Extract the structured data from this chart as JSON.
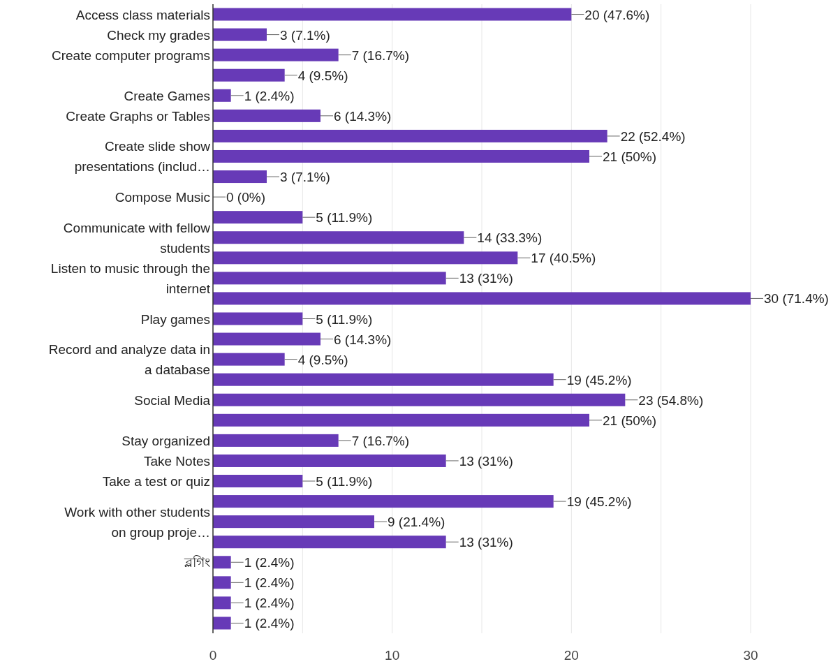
{
  "chart_data": {
    "type": "bar",
    "orientation": "horizontal",
    "categories": [
      "Access class materials",
      "Check my grades",
      "Create computer programs",
      null,
      "Create Games",
      "Create Graphs or Tables",
      null,
      "Create slide show\npresentations (includ…",
      null,
      "Compose Music",
      null,
      "Communicate with fellow\nstudents",
      null,
      "Listen to music through the\ninternet",
      null,
      "Play games",
      null,
      "Record and analyze data in\na database",
      null,
      "Social Media",
      null,
      "Stay organized",
      "Take Notes",
      "Take a test or quiz",
      null,
      "Work with other students\non group proje…",
      null,
      "ব্লগিং",
      null,
      null,
      null
    ],
    "series": [
      {
        "color": "#673ab7",
        "values": [
          20,
          3,
          7,
          4,
          1,
          6,
          22,
          21,
          3,
          0,
          5,
          14,
          17,
          13,
          30,
          5,
          6,
          4,
          19,
          23,
          21,
          7,
          13,
          5,
          19,
          9,
          13,
          1,
          1,
          1,
          1
        ],
        "value_labels": [
          "20 (47.6%)",
          "3 (7.1%)",
          "7 (16.7%)",
          "4 (9.5%)",
          "1 (2.4%)",
          "6 (14.3%)",
          "22 (52.4%)",
          "21 (50%)",
          "3 (7.1%)",
          "0 (0%)",
          "5 (11.9%)",
          "14 (33.3%)",
          "17 (40.5%)",
          "13 (31%)",
          "30 (71.4%)",
          "5 (11.9%)",
          "6 (14.3%)",
          "4 (9.5%)",
          "19 (45.2%)",
          "23 (54.8%)",
          "21 (50%)",
          "7 (16.7%)",
          "13 (31%)",
          "5 (11.9%)",
          "19 (45.2%)",
          "9 (21.4%)",
          "13 (31%)",
          "1 (2.4%)",
          "1 (2.4%)",
          "1 (2.4%)",
          "1 (2.4%)"
        ]
      }
    ],
    "xlim": [
      0,
      30
    ],
    "xticks": [
      0,
      {
        "value": 5,
        "label": null
      },
      10,
      {
        "value": 15,
        "label": null
      },
      20,
      {
        "value": 25,
        "label": null
      },
      30
    ],
    "grid": "x"
  }
}
